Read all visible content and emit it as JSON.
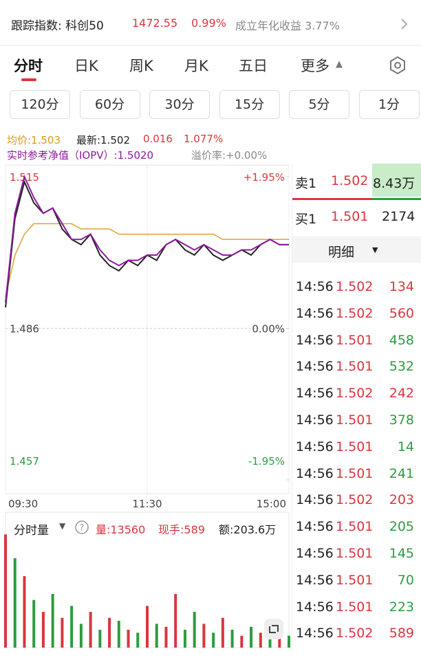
{
  "header": {
    "tracking_label": "跟踪指数: 科创50",
    "index_value": "1472.55",
    "index_change": "0.99%",
    "annual_return": "成立年化收益 3.77%"
  },
  "tabs": [
    "分时",
    "日K",
    "周K",
    "月K",
    "五日",
    "更多"
  ],
  "periods": [
    "120分",
    "60分",
    "30分",
    "15分",
    "5分",
    "1分"
  ],
  "info": {
    "avg": "均价:1.503",
    "latest": "最新:1.502",
    "change": "0.016",
    "change_pct": "1.077%",
    "iopv": "实时参考净值（IOPV）:1.5020",
    "premium": "溢价率:+0.00%"
  },
  "chart_data": {
    "type": "line",
    "x": [
      0,
      8,
      16,
      24,
      32,
      40,
      48,
      56,
      64,
      72,
      80,
      88,
      96,
      104,
      112,
      120,
      128,
      136,
      144,
      152,
      160,
      168,
      176,
      184,
      192,
      200,
      208,
      216,
      224,
      232,
      240
    ],
    "xlim": [
      0,
      240
    ],
    "xticks": [
      {
        "value": 0,
        "label": "09:30"
      },
      {
        "value": 120,
        "label": "11:30"
      },
      {
        "value": 240,
        "label": "15:00"
      }
    ],
    "ylim": [
      1.457,
      1.515
    ],
    "yticks": [
      1.515,
      1.486,
      1.457
    ],
    "y2lim": [
      -1.95,
      1.95
    ],
    "y2ticks": [
      {
        "value": 1.95,
        "label": "+1.95%"
      },
      {
        "value": 0,
        "label": "0.00%"
      },
      {
        "value": -1.95,
        "label": "-1.95%"
      }
    ],
    "series": [
      {
        "color": "#222222",
        "values": [
          1.49,
          1.507,
          1.514,
          1.51,
          1.508,
          1.509,
          1.505,
          1.503,
          1.502,
          1.504,
          1.5,
          1.498,
          1.497,
          1.499,
          1.498,
          1.5,
          1.499,
          1.502,
          1.503,
          1.501,
          1.5,
          1.502,
          1.5,
          1.499,
          1.5,
          1.501,
          1.5,
          1.502,
          1.503,
          1.502,
          1.502
        ]
      },
      {
        "color": "#8e1a9c",
        "values": [
          1.491,
          1.508,
          1.515,
          1.511,
          1.508,
          1.509,
          1.506,
          1.503,
          1.503,
          1.504,
          1.501,
          1.499,
          1.498,
          1.499,
          1.499,
          1.5,
          1.5,
          1.502,
          1.503,
          1.502,
          1.501,
          1.502,
          1.501,
          1.5,
          1.5,
          1.501,
          1.501,
          1.502,
          1.503,
          1.502,
          1.502
        ]
      },
      {
        "color": "#e0a030",
        "values": [
          1.492,
          1.5,
          1.504,
          1.506,
          1.506,
          1.506,
          1.506,
          1.506,
          1.505,
          1.505,
          1.505,
          1.505,
          1.504,
          1.504,
          1.504,
          1.504,
          1.504,
          1.504,
          1.504,
          1.504,
          1.504,
          1.504,
          1.504,
          1.503,
          1.503,
          1.503,
          1.503,
          1.503,
          1.503,
          1.503,
          1.503
        ]
      }
    ]
  },
  "volume_chart": {
    "type": "bar",
    "title": "分时量",
    "total": "量:13560",
    "last": "现手:589",
    "amount": "额:203.6万",
    "x": [
      0,
      8,
      16,
      24,
      32,
      40,
      48,
      56,
      64,
      72,
      80,
      88,
      96,
      104,
      112,
      120,
      128,
      136,
      144,
      152,
      160,
      168,
      176,
      184,
      192,
      200,
      208,
      216,
      224,
      232,
      240
    ],
    "ylim": [
      0,
      210000
    ],
    "values": [
      190000,
      150000,
      120000,
      80000,
      60000,
      90000,
      50000,
      70000,
      40000,
      60000,
      30000,
      50000,
      45000,
      30000,
      25000,
      70000,
      40000,
      35000,
      90000,
      30000,
      60000,
      40000,
      25000,
      50000,
      30000,
      20000,
      35000,
      25000,
      40000,
      30000,
      20000
    ],
    "colors": [
      "#d9363e",
      "#2a9d3f",
      "#d9363e",
      "#2a9d3f",
      "#d9363e",
      "#2a9d3f",
      "#d9363e",
      "#2a9d3f",
      "#2a9d3f",
      "#d9363e",
      "#2a9d3f",
      "#d9363e",
      "#2a9d3f",
      "#d9363e",
      "#2a9d3f",
      "#d9363e",
      "#2a9d3f",
      "#d9363e",
      "#d9363e",
      "#2a9d3f",
      "#2a9d3f",
      "#d9363e",
      "#2a9d3f",
      "#d9363e",
      "#2a9d3f",
      "#d9363e",
      "#2a9d3f",
      "#d9363e",
      "#2a9d3f",
      "#d9363e",
      "#2a9d3f"
    ]
  },
  "order_book": {
    "sell": {
      "label": "卖1",
      "price": "1.502",
      "volume": "8.43万"
    },
    "buy": {
      "label": "买1",
      "price": "1.501",
      "volume": "2174"
    },
    "detail": "明细"
  },
  "trades": [
    {
      "time": "14:56",
      "price": "1.502",
      "volume": "134",
      "color": "#d9363e"
    },
    {
      "time": "14:56",
      "price": "1.502",
      "volume": "560",
      "color": "#d9363e"
    },
    {
      "time": "14:56",
      "price": "1.501",
      "volume": "458",
      "color": "#2a9d3f"
    },
    {
      "time": "14:56",
      "price": "1.501",
      "volume": "532",
      "color": "#2a9d3f"
    },
    {
      "time": "14:56",
      "price": "1.502",
      "volume": "242",
      "color": "#d9363e"
    },
    {
      "time": "14:56",
      "price": "1.501",
      "volume": "378",
      "color": "#2a9d3f"
    },
    {
      "time": "14:56",
      "price": "1.501",
      "volume": "14",
      "color": "#2a9d3f"
    },
    {
      "time": "14:56",
      "price": "1.501",
      "volume": "241",
      "color": "#2a9d3f"
    },
    {
      "time": "14:56",
      "price": "1.502",
      "volume": "203",
      "color": "#d9363e"
    },
    {
      "time": "14:56",
      "price": "1.501",
      "volume": "205",
      "color": "#2a9d3f"
    },
    {
      "time": "14:56",
      "price": "1.501",
      "volume": "145",
      "color": "#2a9d3f"
    },
    {
      "time": "14:56",
      "price": "1.501",
      "volume": "70",
      "color": "#2a9d3f"
    },
    {
      "time": "14:56",
      "price": "1.501",
      "volume": "223",
      "color": "#2a9d3f"
    },
    {
      "time": "14:56",
      "price": "1.502",
      "volume": "589",
      "color": "#d9363e"
    }
  ]
}
